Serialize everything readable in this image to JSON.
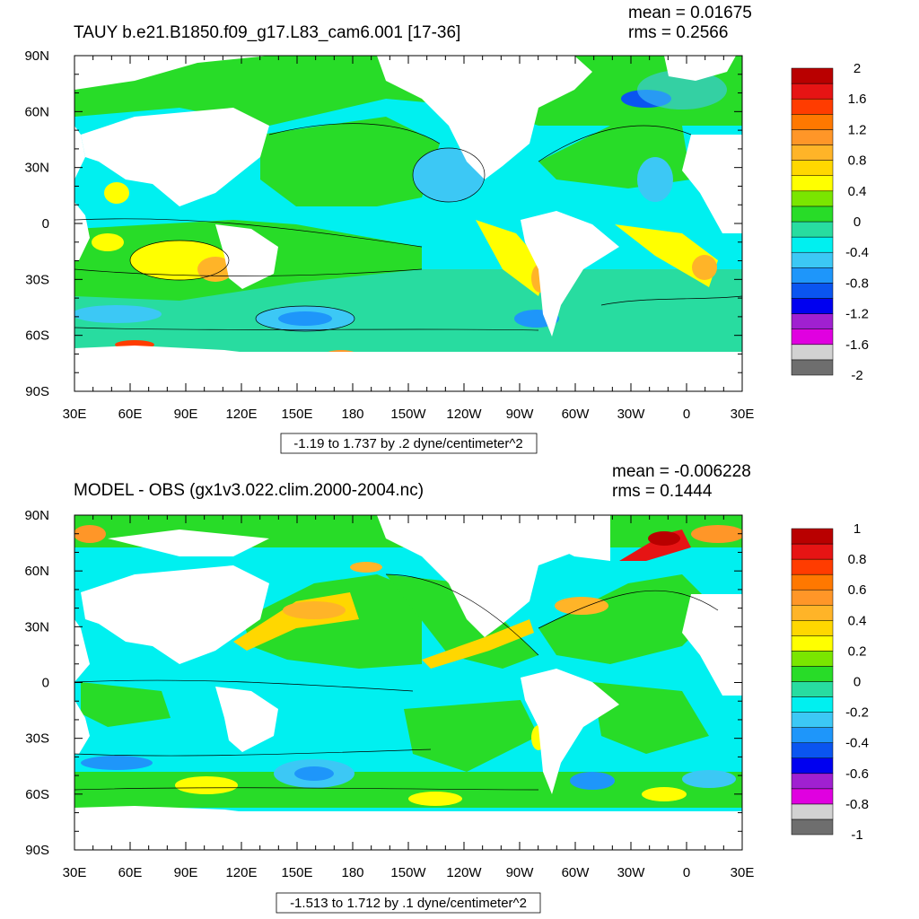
{
  "chart_data": [
    {
      "type": "heatmap",
      "projection": "cylindrical-equidistant",
      "title": "TAUY b.e21.B1850.f09_g17.L83_cam6.001 [17-36]",
      "stats": {
        "mean": "mean = 0.01675",
        "rms": "rms = 0.2566"
      },
      "range_label": "-1.19 to 1.737 by .2 dyne/centimeter^2",
      "xlabel": "",
      "ylabel": "",
      "xlim": [
        30,
        390
      ],
      "ylim": [
        -90,
        90
      ],
      "x_ticks": [
        "30E",
        "60E",
        "90E",
        "120E",
        "150E",
        "180",
        "150W",
        "120W",
        "90W",
        "60W",
        "30W",
        "0",
        "30E"
      ],
      "y_ticks": [
        "90N",
        "60N",
        "30N",
        "0",
        "30S",
        "60S",
        "90S"
      ],
      "colorbar": {
        "colors": [
          "#6e6e6e",
          "#d2d2d2",
          "#e000e0",
          "#a020d0",
          "#0000f0",
          "#0a55f0",
          "#1e96fa",
          "#3cc8f5",
          "#00f0f0",
          "#28dca0",
          "#28dc28",
          "#7ae600",
          "#ffff00",
          "#ffd700",
          "#ffb428",
          "#ff9628",
          "#ff7800",
          "#ff3c00",
          "#e61414",
          "#b90000"
        ],
        "labels": [
          "-2",
          "-1.6",
          "-1.2",
          "-0.8",
          "-0.4",
          "0",
          "0.4",
          "0.8",
          "1.2",
          "1.6",
          "2"
        ]
      }
    },
    {
      "type": "heatmap",
      "projection": "cylindrical-equidistant",
      "title": "MODEL - OBS (gx1v3.022.clim.2000-2004.nc)",
      "stats": {
        "mean": "mean = -0.006228",
        "rms": "rms = 0.1444"
      },
      "range_label": "-1.513 to 1.712 by .1 dyne/centimeter^2",
      "xlabel": "",
      "ylabel": "",
      "xlim": [
        30,
        390
      ],
      "ylim": [
        -90,
        90
      ],
      "x_ticks": [
        "30E",
        "60E",
        "90E",
        "120E",
        "150E",
        "180",
        "150W",
        "120W",
        "90W",
        "60W",
        "30W",
        "0",
        "30E"
      ],
      "y_ticks": [
        "90N",
        "60N",
        "30N",
        "0",
        "30S",
        "60S",
        "90S"
      ],
      "colorbar": {
        "colors": [
          "#6e6e6e",
          "#d2d2d2",
          "#e000e0",
          "#a020d0",
          "#0000f0",
          "#0a55f0",
          "#1e96fa",
          "#3cc8f5",
          "#00f0f0",
          "#28dca0",
          "#28dc28",
          "#7ae600",
          "#ffff00",
          "#ffd700",
          "#ffb428",
          "#ff9628",
          "#ff7800",
          "#ff3c00",
          "#e61414",
          "#b90000"
        ],
        "labels": [
          "-1",
          "-0.8",
          "-0.6",
          "-0.4",
          "-0.2",
          "0",
          "0.2",
          "0.4",
          "0.6",
          "0.8",
          "1"
        ]
      }
    }
  ]
}
